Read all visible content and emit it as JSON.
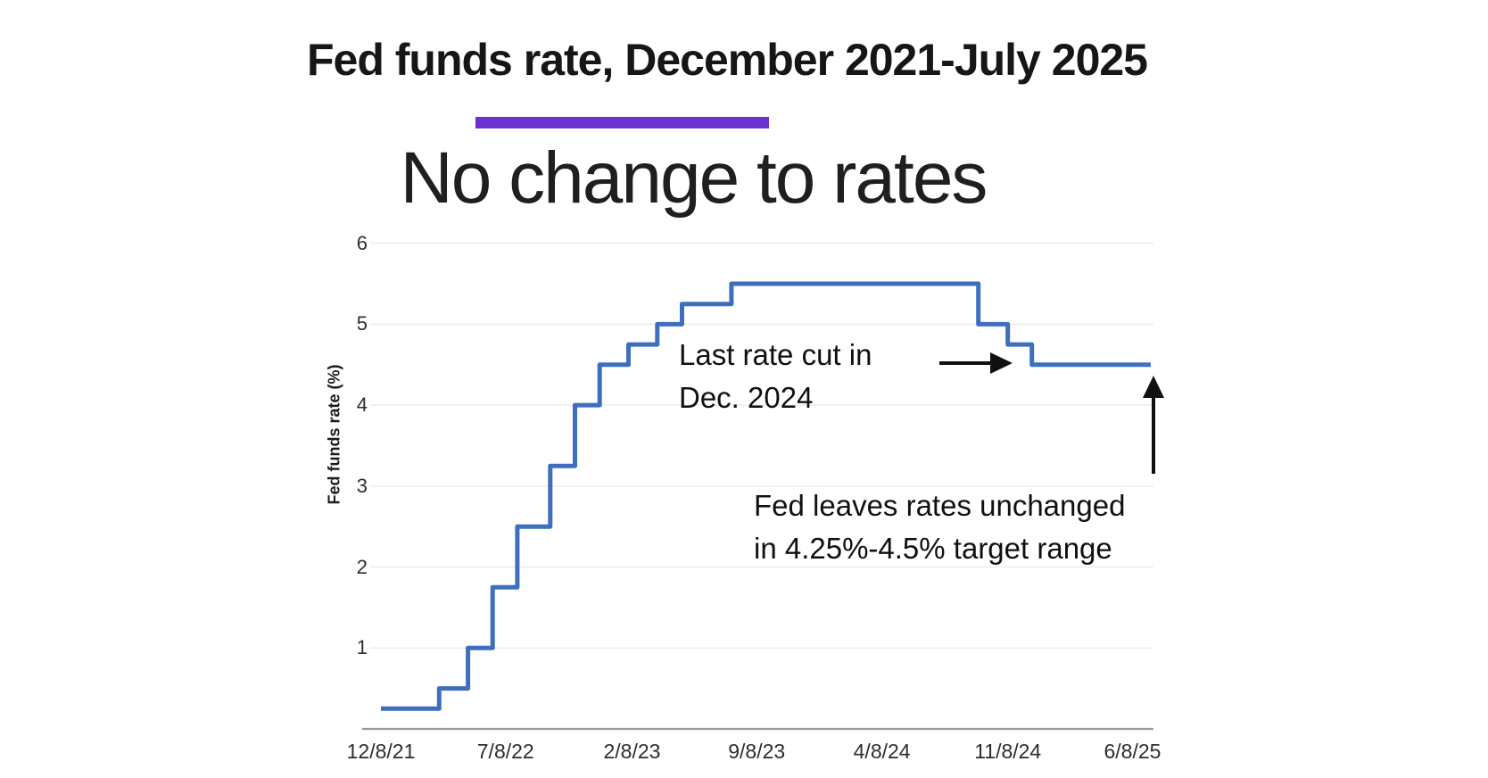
{
  "header": {
    "title": "Fed funds rate, December 2021-July 2025",
    "subtitle": "No change to rates"
  },
  "colors": {
    "accent_bar": "#6a30d0",
    "line": "#3e6fbf",
    "grid": "#ececec",
    "axis_baseline": "#9b9b9b",
    "annotation_text": "#101010",
    "title_text": "#161616"
  },
  "chart_data": {
    "type": "line",
    "step": true,
    "title": "Fed funds rate, December 2021-July 2025",
    "subtitle": "No change to rates",
    "xlabel": "",
    "ylabel": "Fed funds rate (%)",
    "ylim": [
      0,
      6.25
    ],
    "grid": "horizontal-only",
    "legend": "none",
    "y_ticks": [
      6,
      5,
      4,
      3,
      2,
      1
    ],
    "x_ticks": [
      {
        "label": "12/8/21",
        "date": "2021-12-08"
      },
      {
        "label": "7/8/22",
        "date": "2022-07-08"
      },
      {
        "label": "2/8/23",
        "date": "2023-02-08"
      },
      {
        "label": "9/8/23",
        "date": "2023-09-08"
      },
      {
        "label": "4/8/24",
        "date": "2024-04-08"
      },
      {
        "label": "11/8/24",
        "date": "2024-11-08"
      },
      {
        "label": "6/8/25",
        "date": "2025-06-08"
      }
    ],
    "series": [
      {
        "name": "Fed funds rate (%)",
        "points": [
          {
            "date": "2021-12-08",
            "rate": 0.25
          },
          {
            "date": "2022-03-17",
            "rate": 0.5
          },
          {
            "date": "2022-05-05",
            "rate": 1.0
          },
          {
            "date": "2022-06-16",
            "rate": 1.75
          },
          {
            "date": "2022-07-28",
            "rate": 2.5
          },
          {
            "date": "2022-09-22",
            "rate": 3.25
          },
          {
            "date": "2022-11-03",
            "rate": 4.0
          },
          {
            "date": "2022-12-15",
            "rate": 4.5
          },
          {
            "date": "2023-02-02",
            "rate": 4.75
          },
          {
            "date": "2023-03-23",
            "rate": 5.0
          },
          {
            "date": "2023-05-04",
            "rate": 5.25
          },
          {
            "date": "2023-07-27",
            "rate": 5.5
          },
          {
            "date": "2024-09-19",
            "rate": 5.0
          },
          {
            "date": "2024-11-08",
            "rate": 4.75
          },
          {
            "date": "2024-12-19",
            "rate": 4.5
          },
          {
            "date": "2025-07-09",
            "rate": 4.5
          }
        ]
      }
    ],
    "annotations": [
      {
        "id": "last-rate-cut",
        "arrow": "right",
        "lines": [
          "Last rate cut in",
          "Dec. 2024"
        ]
      },
      {
        "id": "rates-unchanged",
        "arrow": "up",
        "lines": [
          "Fed leaves rates unchanged",
          "in 4.25%-4.5% target range"
        ]
      }
    ]
  }
}
